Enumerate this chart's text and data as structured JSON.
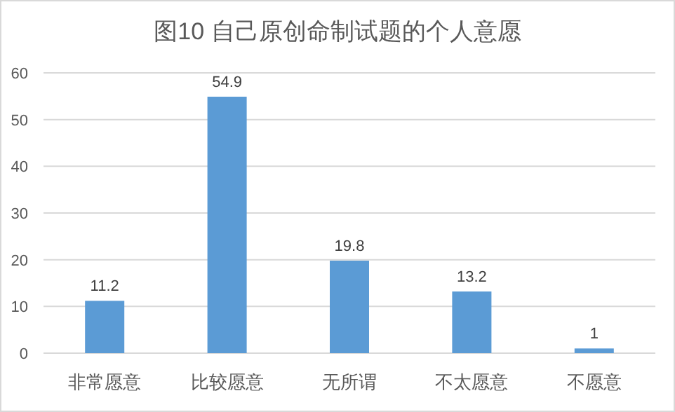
{
  "chart_data": {
    "type": "bar",
    "title": "图10 自己原创命制试题的个人意愿",
    "categories": [
      "非常愿意",
      "比较愿意",
      "无所谓",
      "不太愿意",
      "不愿意"
    ],
    "values": [
      11.2,
      54.9,
      19.8,
      13.2,
      1
    ],
    "color": "#5b9bd5",
    "ylim": [
      0,
      60
    ],
    "yticks": [
      0,
      10,
      20,
      30,
      40,
      50,
      60
    ],
    "grid": "y",
    "data_labels": true
  }
}
